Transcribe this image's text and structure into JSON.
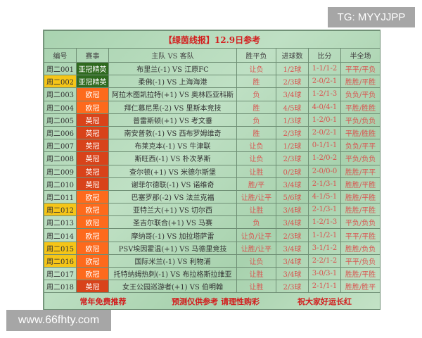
{
  "watermarks": {
    "top": "TG: MYYJJPP",
    "bottom": "www.66fhty.com"
  },
  "title": "【绿茵线报】12.9日参考",
  "headers": [
    "编号",
    "赛事",
    "主队 VS 客队",
    "胜平负",
    "进球数",
    "比分",
    "半全场"
  ],
  "colors": {
    "亚冠精英": "#2f6a1f",
    "英冠": "#d8431a",
    "欧冠": "#fd6a1c",
    "highlight": "#f5c518"
  },
  "rows": [
    {
      "id": "周二001",
      "comp": "亚冠精英",
      "match": "布里兰(-1) VS 江原FC",
      "wdl": "让负",
      "goals": "1/2球",
      "score": "1-1/1-2",
      "htft": "平平/平负",
      "highlight": false
    },
    {
      "id": "周二002",
      "comp": "亚冠精英",
      "match": "柔佛(-1) VS 上海海港",
      "wdl": "胜",
      "goals": "2/3球",
      "score": "2-0/2-1",
      "htft": "胜胜/平胜",
      "highlight": true
    },
    {
      "id": "周二003",
      "comp": "欧冠",
      "match": "阿拉木图凯拉特(+1) VS 奥林匹亚科斯",
      "wdl": "负",
      "goals": "3/4球",
      "score": "1-2/1-3",
      "htft": "负负/平负",
      "highlight": false
    },
    {
      "id": "周二004",
      "comp": "欧冠",
      "match": "拜仁慕尼黑(-2) VS 里斯本竞技",
      "wdl": "胜",
      "goals": "4/5球",
      "score": "4-0/4-1",
      "htft": "平胜/胜胜",
      "highlight": false
    },
    {
      "id": "周二005",
      "comp": "英冠",
      "match": "普雷斯顿(+1) VS 考文垂",
      "wdl": "负",
      "goals": "1/3球",
      "score": "1-2/0-1",
      "htft": "平负/负负",
      "highlight": false
    },
    {
      "id": "周二006",
      "comp": "英冠",
      "match": "南安普敦(-1) VS 西布罗姆维奇",
      "wdl": "胜",
      "goals": "2/3球",
      "score": "2-0/2-1",
      "htft": "平胜/胜胜",
      "highlight": false
    },
    {
      "id": "周二007",
      "comp": "英冠",
      "match": "布莱克本(-1) VS 牛津联",
      "wdl": "让负",
      "goals": "1/2球",
      "score": "0-1/1-1",
      "htft": "负负/平平",
      "highlight": false
    },
    {
      "id": "周二008",
      "comp": "英冠",
      "match": "斯旺西(-1) VS 朴次茅斯",
      "wdl": "让负",
      "goals": "2/3球",
      "score": "1-2/0-2",
      "htft": "平负/负负",
      "highlight": false
    },
    {
      "id": "周二009",
      "comp": "英冠",
      "match": "查尔顿(+1) VS 米德尔斯堡",
      "wdl": "让胜",
      "goals": "0/2球",
      "score": "2-0/0-0",
      "htft": "胜胜/平平",
      "highlight": false
    },
    {
      "id": "周二010",
      "comp": "英冠",
      "match": "谢菲尔德联(-1) VS 诺维奇",
      "wdl": "胜/平",
      "goals": "3/4球",
      "score": "2-1/3-1",
      "htft": "胜胜/平胜",
      "highlight": false
    },
    {
      "id": "周二011",
      "comp": "欧冠",
      "match": "巴塞罗那(-2) VS 法兰克福",
      "wdl": "让胜/让平",
      "goals": "5/6球",
      "score": "4-1/5-1",
      "htft": "胜胜/平胜",
      "highlight": false
    },
    {
      "id": "周二012",
      "comp": "欧冠",
      "match": "亚特兰大(+1) VS 切尔西",
      "wdl": "让胜",
      "goals": "3/4球",
      "score": "2-1/3-1",
      "htft": "胜胜/平胜",
      "highlight": true
    },
    {
      "id": "周二013",
      "comp": "欧冠",
      "match": "圣吉尔联合(+1) VS 马赛",
      "wdl": "负",
      "goals": "3/4球",
      "score": "1-2/1-3",
      "htft": "平负/负负",
      "highlight": false
    },
    {
      "id": "周二014",
      "comp": "欧冠",
      "match": "摩纳哥(-1) VS 加拉塔萨雷",
      "wdl": "让负/让平",
      "goals": "2/3球",
      "score": "1-1/2-1",
      "htft": "平平/平胜",
      "highlight": false
    },
    {
      "id": "周二015",
      "comp": "欧冠",
      "match": "PSV埃因霍温(+1) VS 马德里竞技",
      "wdl": "让胜/让平",
      "goals": "3/4球",
      "score": "3-1/1-2",
      "htft": "胜胜/负负",
      "highlight": true
    },
    {
      "id": "周二016",
      "comp": "欧冠",
      "match": "国际米兰(-1) VS 利物浦",
      "wdl": "让负",
      "goals": "3/4球",
      "score": "2-2/1-2",
      "htft": "平平/负负",
      "highlight": true
    },
    {
      "id": "周二017",
      "comp": "欧冠",
      "match": "托特纳姆热刺(-1) VS 布拉格斯拉维亚",
      "wdl": "让胜",
      "goals": "3/4球",
      "score": "3-0/3-1",
      "htft": "胜胜/平胜",
      "highlight": false
    },
    {
      "id": "周二018",
      "comp": "英冠",
      "match": "女王公园巡游者(+1) VS 伯明翰",
      "wdl": "让胜",
      "goals": "2/3球",
      "score": "2-1/1-1",
      "htft": "胜胜/胜平",
      "highlight": false
    }
  ],
  "footer": [
    "常年免费推荐",
    "预测仅供参考  请理性购彩",
    "祝大家好运长红"
  ]
}
